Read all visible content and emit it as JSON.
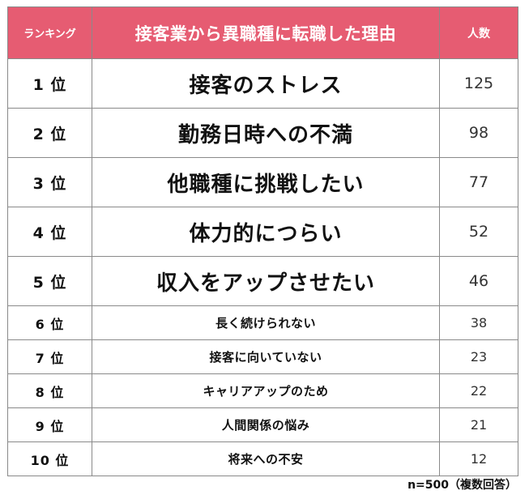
{
  "header": {
    "rank_label": "ランキング",
    "reason_label": "接客業から異職種に転職した理由",
    "count_label": "人数",
    "header_color": "#e65c72"
  },
  "rows": [
    {
      "rank": "1 位",
      "reason": "接客のストレス",
      "count": "125"
    },
    {
      "rank": "2 位",
      "reason": "勤務日時への不満",
      "count": "98"
    },
    {
      "rank": "3 位",
      "reason": "他職種に挑戦したい",
      "count": "77"
    },
    {
      "rank": "4 位",
      "reason": "体力的につらい",
      "count": "52"
    },
    {
      "rank": "5 位",
      "reason": "収入をアップさせたい",
      "count": "46"
    },
    {
      "rank": "6 位",
      "reason": "長く続けられない",
      "count": "38"
    },
    {
      "rank": "7 位",
      "reason": "接客に向いていない",
      "count": "23"
    },
    {
      "rank": "8 位",
      "reason": "キャリアアップのため",
      "count": "22"
    },
    {
      "rank": "9 位",
      "reason": "人間関係の悩み",
      "count": "21"
    },
    {
      "rank": "10 位",
      "reason": "将来への不安",
      "count": "12"
    }
  ],
  "footnote": "n=500（複数回答）"
}
